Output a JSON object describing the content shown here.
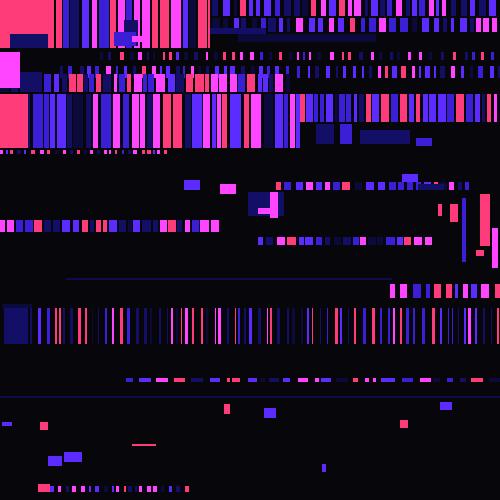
{
  "palette": {
    "background": "#07060b",
    "pink": "#ff3c7a",
    "magenta": "#ff45ff",
    "violet": "#5b2bff",
    "indigo": "#3a1fd6",
    "navy": "#130f66",
    "deep_navy": "#0c0a3a"
  },
  "art_style": "abstract glitch composition of vertical stripes and scattered rectangles"
}
